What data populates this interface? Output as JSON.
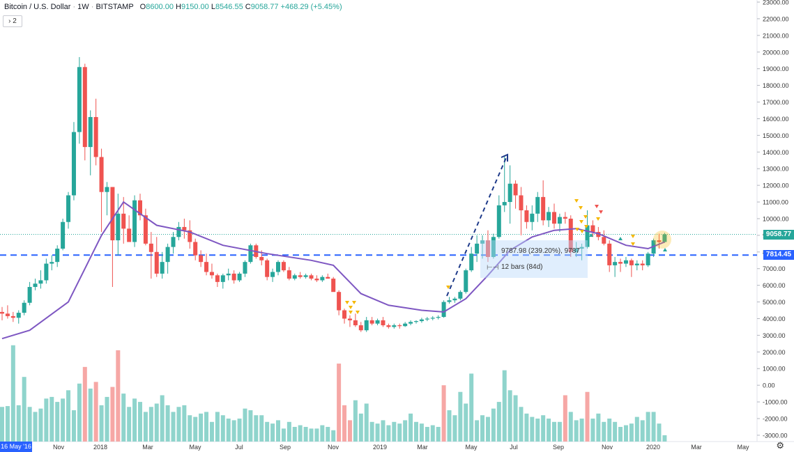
{
  "header": {
    "symbol": "Bitcoin / U.S. Dollar",
    "interval": "1W",
    "exchange": "BITSTAMP",
    "o_label": "O",
    "o_value": "8600.00",
    "h_label": "H",
    "h_value": "9150.00",
    "l_label": "L",
    "l_value": "8546.55",
    "c_label": "C",
    "c_value": "9058.77",
    "change": "+468.29 (+5.45%)"
  },
  "collapse_badge": "2",
  "measure": {
    "line1": "9787.98 (239.20%), 9787",
    "line2": "12 bars (84d)",
    "ruler_icon": "ruler-icon"
  },
  "last_price_label": "9058.77",
  "level_label": "7814.45",
  "date_marker": "16 May '16",
  "settings_icon": "gear-icon",
  "colors": {
    "up": "#26a69a",
    "down": "#ef5350",
    "ma": "#7e57c2",
    "level": "#2962ff",
    "vol_up": "#8fd4cc",
    "vol_down": "#f6a7a5"
  },
  "chart_data": {
    "type": "candlestick",
    "ylim": [
      -3000,
      23000
    ],
    "price_ticks": [
      "23000.00",
      "22000.00",
      "21000.00",
      "20000.00",
      "19000.00",
      "18000.00",
      "17000.00",
      "16000.00",
      "15000.00",
      "14000.00",
      "13000.00",
      "12000.00",
      "11000.00",
      "10000.00",
      "9000.00",
      "8000.00",
      "7000.00",
      "6000.00",
      "5000.00",
      "4000.00",
      "3000.00",
      "2000.00",
      "1000.00",
      "0.00",
      "-1000.00",
      "-2000.00",
      "-3000.00"
    ],
    "x_ticks": [
      "Nov",
      "2018",
      "Mar",
      "May",
      "Jul",
      "Sep",
      "Nov",
      "2019",
      "Mar",
      "May",
      "Jul",
      "Sep",
      "Nov",
      "2020",
      "Mar",
      "May"
    ],
    "horizontal_level": 7814.45,
    "last_close": 9058.77,
    "candles": [
      [
        4400,
        4700,
        3900,
        4300
      ],
      [
        4300,
        4800,
        4000,
        4150
      ],
      [
        4150,
        4400,
        3800,
        4050
      ],
      [
        4050,
        4500,
        3700,
        4350
      ],
      [
        4350,
        5100,
        4200,
        4950
      ],
      [
        4950,
        6200,
        4800,
        5900
      ],
      [
        5900,
        6400,
        5700,
        6100
      ],
      [
        6100,
        6900,
        5800,
        6300
      ],
      [
        6300,
        7600,
        6100,
        7300
      ],
      [
        7300,
        7800,
        6900,
        7400
      ],
      [
        7400,
        8400,
        7100,
        8200
      ],
      [
        8200,
        10000,
        8100,
        9800
      ],
      [
        9800,
        11600,
        9400,
        11400
      ],
      [
        11400,
        15800,
        11100,
        15200
      ],
      [
        15200,
        19700,
        14500,
        19100
      ],
      [
        19100,
        19300,
        13500,
        14300
      ],
      [
        14300,
        16500,
        12600,
        16100
      ],
      [
        16100,
        17200,
        13200,
        13700
      ],
      [
        13700,
        14200,
        9200,
        11600
      ],
      [
        11600,
        12200,
        10200,
        11900
      ],
      [
        11900,
        11900,
        5900,
        8700
      ],
      [
        8700,
        11500,
        7800,
        10300
      ],
      [
        10300,
        11300,
        8500,
        9400
      ],
      [
        9400,
        10200,
        8700,
        8600
      ],
      [
        8600,
        11400,
        8300,
        11100
      ],
      [
        11100,
        11500,
        9900,
        10200
      ],
      [
        10200,
        10600,
        8400,
        8500
      ],
      [
        8500,
        9200,
        6400,
        8000
      ],
      [
        8000,
        8900,
        6500,
        6700
      ],
      [
        6700,
        8000,
        6400,
        7400
      ],
      [
        7400,
        8500,
        6700,
        8300
      ],
      [
        8300,
        9200,
        7900,
        8900
      ],
      [
        8900,
        9800,
        8700,
        9500
      ],
      [
        9500,
        10000,
        8800,
        9300
      ],
      [
        9300,
        9900,
        8200,
        8600
      ],
      [
        8600,
        8800,
        7500,
        7800
      ],
      [
        7800,
        8100,
        7100,
        7400
      ],
      [
        7400,
        7900,
        6600,
        6800
      ],
      [
        6800,
        7300,
        6400,
        6600
      ],
      [
        6600,
        6700,
        5900,
        6200
      ],
      [
        6200,
        6700,
        5800,
        6600
      ],
      [
        6600,
        7000,
        6300,
        6700
      ],
      [
        6700,
        6900,
        6100,
        6300
      ],
      [
        6300,
        6800,
        6200,
        6700
      ],
      [
        6700,
        7500,
        6500,
        7400
      ],
      [
        7400,
        8500,
        7300,
        8400
      ],
      [
        8400,
        8500,
        7600,
        7700
      ],
      [
        7700,
        8100,
        7200,
        7500
      ],
      [
        7500,
        7600,
        6300,
        6500
      ],
      [
        6500,
        7000,
        6200,
        6800
      ],
      [
        6800,
        7500,
        6600,
        7400
      ],
      [
        7400,
        7500,
        6800,
        6900
      ],
      [
        6900,
        7100,
        6300,
        6400
      ],
      [
        6400,
        6700,
        6300,
        6600
      ],
      [
        6600,
        6800,
        6400,
        6500
      ],
      [
        6500,
        6700,
        6400,
        6600
      ],
      [
        6600,
        6700,
        6300,
        6400
      ],
      [
        6400,
        6600,
        6200,
        6300
      ],
      [
        6300,
        6600,
        6200,
        6500
      ],
      [
        6500,
        6700,
        6400,
        6400
      ],
      [
        6400,
        6500,
        5700,
        5600
      ],
      [
        5600,
        5700,
        4200,
        4500
      ],
      [
        4500,
        4600,
        3700,
        4000
      ],
      [
        4000,
        4200,
        3500,
        3900
      ],
      [
        3900,
        4300,
        3500,
        3600
      ],
      [
        3600,
        3800,
        3200,
        3300
      ],
      [
        3300,
        4100,
        3200,
        3900
      ],
      [
        3900,
        4100,
        3600,
        3700
      ],
      [
        3700,
        4000,
        3600,
        3900
      ],
      [
        3900,
        4100,
        3500,
        3600
      ],
      [
        3600,
        3700,
        3400,
        3500
      ],
      [
        3500,
        3700,
        3400,
        3600
      ],
      [
        3600,
        3700,
        3400,
        3550
      ],
      [
        3550,
        3800,
        3500,
        3700
      ],
      [
        3700,
        3900,
        3600,
        3800
      ],
      [
        3800,
        3900,
        3700,
        3850
      ],
      [
        3850,
        4050,
        3750,
        3950
      ],
      [
        3950,
        4100,
        3850,
        4000
      ],
      [
        4000,
        4150,
        3900,
        4050
      ],
      [
        4050,
        4200,
        3950,
        4100
      ],
      [
        4100,
        5100,
        4050,
        5000
      ],
      [
        5000,
        5300,
        4900,
        5100
      ],
      [
        5100,
        5300,
        4950,
        5200
      ],
      [
        5200,
        5700,
        5100,
        5600
      ],
      [
        5600,
        7000,
        5500,
        6900
      ],
      [
        6900,
        8300,
        6800,
        7900
      ],
      [
        7900,
        9000,
        7400,
        8500
      ],
      [
        8500,
        9000,
        7600,
        8700
      ],
      [
        8700,
        9300,
        7400,
        7700
      ],
      [
        7700,
        9100,
        7600,
        8900
      ],
      [
        8900,
        11400,
        8800,
        10800
      ],
      [
        10800,
        13800,
        10400,
        11000
      ],
      [
        11000,
        13200,
        9700,
        12100
      ],
      [
        12100,
        12300,
        10600,
        11400
      ],
      [
        11400,
        11900,
        9000,
        10500
      ],
      [
        10500,
        10800,
        9400,
        9800
      ],
      [
        9800,
        10800,
        9300,
        10300
      ],
      [
        10300,
        11600,
        9800,
        11300
      ],
      [
        11300,
        12300,
        9600,
        9900
      ],
      [
        9900,
        10700,
        9500,
        10400
      ],
      [
        10400,
        10900,
        9400,
        9700
      ],
      [
        9700,
        10300,
        9200,
        10100
      ],
      [
        10100,
        10400,
        9700,
        10000
      ],
      [
        10000,
        10200,
        7700,
        8000
      ],
      [
        8000,
        8600,
        7700,
        8200
      ],
      [
        8200,
        8500,
        7500,
        8300
      ],
      [
        8300,
        10500,
        8200,
        9600
      ],
      [
        9600,
        9900,
        8900,
        9200
      ],
      [
        9200,
        9500,
        8700,
        8900
      ],
      [
        8900,
        9300,
        8400,
        8500
      ],
      [
        8500,
        8700,
        6800,
        7200
      ],
      [
        7200,
        7700,
        6500,
        7400
      ],
      [
        7400,
        7600,
        6800,
        7300
      ],
      [
        7300,
        7700,
        7100,
        7500
      ],
      [
        7500,
        7600,
        6500,
        7200
      ],
      [
        7200,
        7500,
        6900,
        7300
      ],
      [
        7300,
        7500,
        6900,
        7200
      ],
      [
        7200,
        8000,
        7100,
        7900
      ],
      [
        7900,
        8800,
        7700,
        8700
      ],
      [
        8700,
        9100,
        8200,
        8600
      ],
      [
        8600,
        9150,
        8546.55,
        9058.77
      ]
    ],
    "ma": [
      [
        0,
        2800
      ],
      [
        5,
        3300
      ],
      [
        12,
        5000
      ],
      [
        18,
        9000
      ],
      [
        22,
        11000
      ],
      [
        28,
        9600
      ],
      [
        34,
        9200
      ],
      [
        40,
        8400
      ],
      [
        48,
        7900
      ],
      [
        56,
        7500
      ],
      [
        60,
        7200
      ],
      [
        65,
        5500
      ],
      [
        70,
        4800
      ],
      [
        76,
        4500
      ],
      [
        80,
        4400
      ],
      [
        84,
        5200
      ],
      [
        88,
        6600
      ],
      [
        92,
        8100
      ],
      [
        96,
        8900
      ],
      [
        100,
        9300
      ],
      [
        104,
        9400
      ],
      [
        108,
        9100
      ],
      [
        113,
        8400
      ],
      [
        117,
        8200
      ],
      [
        120,
        8600
      ]
    ],
    "volume": [
      [
        -1300,
        0
      ],
      [
        -1250,
        0
      ],
      [
        2400,
        0
      ],
      [
        -1200,
        0
      ],
      [
        500,
        0
      ],
      [
        -1300,
        0
      ],
      [
        -1600,
        0
      ],
      [
        -1400,
        0
      ],
      [
        -800,
        0
      ],
      [
        -700,
        0
      ],
      [
        -1000,
        0
      ],
      [
        -800,
        0
      ],
      [
        -300,
        0
      ],
      [
        -1500,
        0
      ],
      [
        100,
        0
      ],
      [
        1100,
        1
      ],
      [
        -200,
        0
      ],
      [
        200,
        1
      ],
      [
        -1200,
        0
      ],
      [
        -700,
        0
      ],
      [
        -100,
        1
      ],
      [
        2100,
        1
      ],
      [
        -500,
        0
      ],
      [
        -1300,
        0
      ],
      [
        -800,
        0
      ],
      [
        -1000,
        0
      ],
      [
        -1600,
        0
      ],
      [
        -1300,
        0
      ],
      [
        -1100,
        0
      ],
      [
        -600,
        0
      ],
      [
        -1200,
        0
      ],
      [
        -1600,
        0
      ],
      [
        -1300,
        0
      ],
      [
        -1200,
        0
      ],
      [
        -1800,
        0
      ],
      [
        -1900,
        0
      ],
      [
        -1700,
        0
      ],
      [
        -1600,
        0
      ],
      [
        -2200,
        0
      ],
      [
        -1600,
        0
      ],
      [
        -1800,
        0
      ],
      [
        -2000,
        0
      ],
      [
        -2100,
        0
      ],
      [
        -2000,
        0
      ],
      [
        -1400,
        0
      ],
      [
        -1500,
        0
      ],
      [
        -1800,
        0
      ],
      [
        -1800,
        0
      ],
      [
        -2200,
        0
      ],
      [
        -2300,
        0
      ],
      [
        -2100,
        0
      ],
      [
        -2600,
        0
      ],
      [
        -2200,
        0
      ],
      [
        -2500,
        0
      ],
      [
        -2400,
        0
      ],
      [
        -2500,
        0
      ],
      [
        -2600,
        0
      ],
      [
        -2600,
        0
      ],
      [
        -2400,
        0
      ],
      [
        -2500,
        0
      ],
      [
        -2700,
        0
      ],
      [
        1300,
        1
      ],
      [
        -1200,
        1
      ],
      [
        -2100,
        1
      ],
      [
        -900,
        0
      ],
      [
        -1700,
        0
      ],
      [
        -1100,
        0
      ],
      [
        -2200,
        0
      ],
      [
        -2300,
        0
      ],
      [
        -2100,
        0
      ],
      [
        -2400,
        0
      ],
      [
        -2200,
        0
      ],
      [
        -2300,
        0
      ],
      [
        -2100,
        0
      ],
      [
        -1700,
        0
      ],
      [
        -2200,
        0
      ],
      [
        -2300,
        0
      ],
      [
        -2500,
        0
      ],
      [
        -2400,
        0
      ],
      [
        -2500,
        0
      ],
      [
        0,
        1
      ],
      [
        -1500,
        0
      ],
      [
        -1800,
        0
      ],
      [
        -400,
        0
      ],
      [
        -1100,
        0
      ],
      [
        700,
        0
      ],
      [
        -2100,
        0
      ],
      [
        -1800,
        0
      ],
      [
        -1900,
        0
      ],
      [
        -1400,
        0
      ],
      [
        -1000,
        0
      ],
      [
        900,
        0
      ],
      [
        -300,
        0
      ],
      [
        -600,
        0
      ],
      [
        -1300,
        0
      ],
      [
        -1700,
        0
      ],
      [
        -1900,
        0
      ],
      [
        -2000,
        0
      ],
      [
        -1800,
        0
      ],
      [
        -2000,
        0
      ],
      [
        -2200,
        0
      ],
      [
        -2200,
        0
      ],
      [
        -600,
        1
      ],
      [
        -1600,
        0
      ],
      [
        -2100,
        0
      ],
      [
        -2000,
        0
      ],
      [
        -400,
        1
      ],
      [
        -2000,
        0
      ],
      [
        -1700,
        0
      ],
      [
        -2200,
        0
      ],
      [
        -2000,
        0
      ],
      [
        -2200,
        0
      ],
      [
        -2500,
        0
      ],
      [
        -2400,
        0
      ],
      [
        -2300,
        0
      ],
      [
        -1900,
        0
      ],
      [
        -2100,
        0
      ],
      [
        -1600,
        0
      ],
      [
        -1600,
        0
      ],
      [
        -2300,
        0
      ],
      [
        -3000,
        0
      ]
    ]
  }
}
